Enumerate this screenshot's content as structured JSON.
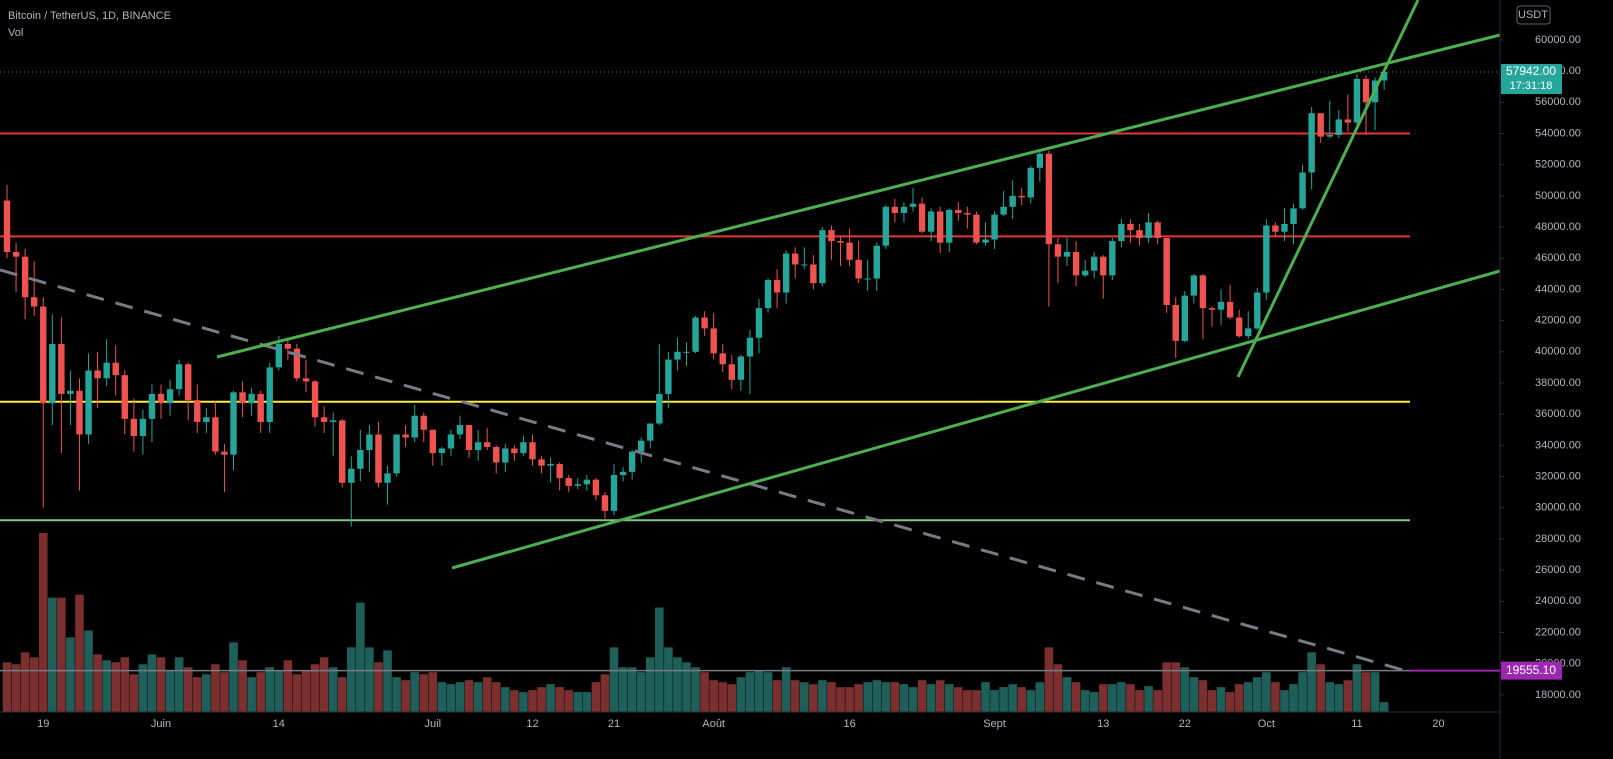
{
  "chart_data": {
    "type": "candlestick",
    "title": "Bitcoin / TetherUS, 1D, BINANCE",
    "volume_label": "Vol",
    "currency": "USDT",
    "categories": [
      null,
      null,
      null,
      null,
      "19",
      null,
      null,
      null,
      null,
      null,
      null,
      null,
      null,
      null,
      null,
      null,
      null,
      "Juin",
      null,
      null,
      null,
      null,
      null,
      null,
      null,
      null,
      null,
      null,
      null,
      null,
      "14",
      null,
      null,
      null,
      null,
      null,
      null,
      null,
      null,
      null,
      null,
      null,
      null,
      null,
      null,
      null,
      null,
      "Juil",
      null,
      null,
      null,
      null,
      null,
      null,
      null,
      null,
      null,
      null,
      "12",
      null,
      null,
      null,
      null,
      null,
      null,
      null,
      null,
      "21",
      null,
      null,
      null,
      null,
      null,
      null,
      null,
      null,
      null,
      null,
      "Août",
      null,
      null,
      null,
      null,
      null,
      null,
      null,
      null,
      null,
      null,
      null,
      null,
      null,
      null,
      "16",
      null,
      null,
      null,
      null,
      null,
      null,
      null,
      null,
      null,
      null,
      null,
      null,
      null,
      null,
      null,
      "Sept",
      null,
      null,
      null,
      null,
      null,
      null,
      null,
      null,
      null,
      null,
      null,
      "13",
      null,
      null,
      null,
      null,
      null,
      null,
      null,
      null,
      "22",
      null,
      null,
      null,
      null,
      null,
      null,
      null,
      null,
      "Oct",
      null,
      null,
      null,
      null,
      null,
      null,
      null,
      null,
      null,
      "11",
      null,
      null,
      null,
      null,
      null,
      null,
      null,
      null,
      "20"
    ],
    "open": [
      49700,
      46400,
      46100,
      43500,
      42900,
      36700,
      40500,
      37300,
      37500,
      34700,
      38800,
      38300,
      39300,
      38500,
      35700,
      34600,
      35700,
      37300,
      36700,
      37600,
      39200,
      36900,
      35500,
      35800,
      33600,
      33400,
      37400,
      36700,
      37300,
      35500,
      39000,
      40500,
      40200,
      38300,
      38100,
      35800,
      35500,
      35600,
      31600,
      32500,
      33700,
      34700,
      31600,
      32200,
      34700,
      34500,
      35900,
      35000,
      33500,
      33800,
      34700,
      35300,
      33700,
      34200,
      33900,
      32900,
      33800,
      33500,
      34200,
      33100,
      32700,
      32800,
      31900,
      31400,
      31500,
      31800,
      30800,
      29800,
      32100,
      32300,
      33600,
      34300,
      35400,
      37300,
      39500,
      40000,
      40000,
      42200,
      41500,
      39900,
      39200,
      38200,
      39700,
      40900,
      42800,
      44600,
      43800,
      46300,
      45600,
      45600,
      44400,
      47800,
      47100,
      47000,
      45900,
      44700,
      44700,
      46800,
      49300,
      48900,
      49300,
      49500,
      47700,
      49000,
      47000,
      49100,
      48900,
      48800,
      47000,
      47200,
      48800,
      49300,
      50000,
      49900,
      51800,
      52700,
      46900,
      46100,
      46400,
      44900,
      45200,
      46100,
      44900,
      47100,
      48200,
      47800,
      47300,
      48300,
      47300,
      43000,
      40700,
      43600,
      44900,
      42800,
      42700,
      43200,
      42200,
      41000,
      41500,
      43800,
      48100,
      47700,
      48200,
      49200,
      51500,
      55300,
      53800,
      53900,
      54900,
      54700,
      57500,
      56000,
      57400,
      null,
      null,
      null,
      null,
      null,
      null
    ],
    "high": [
      50700,
      47000,
      46600,
      45800,
      43500,
      42400,
      42200,
      38800,
      38300,
      39900,
      40000,
      40800,
      40400,
      38800,
      37000,
      36300,
      37900,
      37900,
      38200,
      39500,
      39300,
      37900,
      36400,
      36800,
      34100,
      37500,
      38100,
      37700,
      37500,
      39300,
      41000,
      40900,
      40500,
      39500,
      38200,
      36500,
      36100,
      35700,
      33300,
      35000,
      35300,
      35500,
      32700,
      34700,
      35300,
      36600,
      36100,
      35000,
      33900,
      35000,
      35900,
      35300,
      35000,
      35100,
      34000,
      34100,
      34000,
      34600,
      34700,
      33300,
      33200,
      32900,
      32100,
      31900,
      32100,
      31900,
      31000,
      32800,
      32600,
      33700,
      34500,
      35400,
      40500,
      40000,
      40900,
      40600,
      42300,
      42600,
      42500,
      40500,
      39800,
      39800,
      41400,
      43400,
      44700,
      45300,
      46500,
      46700,
      46700,
      46200,
      48000,
      48100,
      47400,
      47900,
      47100,
      45900,
      47000,
      49400,
      49800,
      49600,
      50500,
      49900,
      49200,
      49300,
      49200,
      49600,
      49300,
      49000,
      48300,
      49000,
      50300,
      51000,
      50500,
      51900,
      52900,
      52900,
      47300,
      47300,
      47100,
      45900,
      46400,
      46200,
      47300,
      48500,
      48500,
      48200,
      48900,
      48400,
      47300,
      43500,
      43900,
      45000,
      45000,
      42900,
      44000,
      44300,
      42700,
      42600,
      44100,
      48500,
      48300,
      49200,
      49500,
      52000,
      55700,
      55300,
      56100,
      55500,
      56500,
      57800,
      57700,
      57600,
      58000,
      null,
      null,
      null,
      null,
      null,
      null
    ],
    "low": [
      46000,
      43800,
      42100,
      42300,
      30000,
      35300,
      33500,
      35300,
      31100,
      34100,
      36400,
      37800,
      37200,
      34700,
      33600,
      33400,
      34200,
      35700,
      35900,
      37200,
      35600,
      34800,
      34800,
      33400,
      31000,
      32400,
      35800,
      35900,
      34800,
      34800,
      38800,
      39500,
      38100,
      37400,
      35200,
      34800,
      33300,
      31300,
      28800,
      31700,
      32300,
      31300,
      30200,
      32000,
      33900,
      34200,
      34200,
      32700,
      32700,
      33300,
      34400,
      33200,
      33000,
      33700,
      32200,
      32300,
      33000,
      33300,
      32700,
      32200,
      31600,
      31100,
      31000,
      31200,
      31100,
      30500,
      29300,
      29500,
      31700,
      31800,
      32900,
      33800,
      35300,
      36400,
      38800,
      39100,
      39900,
      41000,
      39500,
      38700,
      37600,
      37500,
      37300,
      39900,
      42500,
      42800,
      43100,
      44700,
      45300,
      44000,
      44200,
      45900,
      45500,
      45500,
      44400,
      43900,
      43900,
      46600,
      48300,
      48300,
      49000,
      47600,
      47100,
      46300,
      46400,
      48400,
      47900,
      46900,
      46800,
      46600,
      48700,
      48500,
      49400,
      49500,
      50900,
      42900,
      44400,
      45500,
      44200,
      44800,
      44700,
      43400,
      44600,
      46700,
      47000,
      46800,
      47000,
      46900,
      42500,
      39600,
      40600,
      43100,
      40800,
      41600,
      41700,
      42100,
      40900,
      40800,
      41400,
      43300,
      47400,
      47100,
      46900,
      49100,
      50400,
      53400,
      53700,
      53700,
      54100,
      54400,
      53900,
      54200,
      56800,
      null,
      null,
      null,
      null,
      null,
      null
    ],
    "close": [
      46400,
      46100,
      43500,
      42900,
      36700,
      40500,
      37300,
      37500,
      34700,
      38800,
      38300,
      39300,
      38500,
      35700,
      34600,
      35700,
      37300,
      36700,
      37600,
      39200,
      36900,
      35500,
      35800,
      33600,
      33400,
      37400,
      36700,
      37300,
      35500,
      39000,
      40500,
      40200,
      38300,
      38100,
      35800,
      35500,
      35600,
      31600,
      32500,
      33700,
      34700,
      31600,
      32200,
      34700,
      34500,
      35900,
      35000,
      33500,
      33800,
      34700,
      35300,
      33700,
      34200,
      33900,
      32900,
      33800,
      33500,
      34200,
      33100,
      32700,
      32800,
      31900,
      31400,
      31500,
      31800,
      30800,
      29800,
      32100,
      32300,
      33600,
      34300,
      35400,
      37300,
      39500,
      40000,
      40000,
      42200,
      41500,
      39900,
      39200,
      38200,
      39700,
      40900,
      42800,
      44600,
      43800,
      46300,
      45600,
      45600,
      44400,
      47800,
      47100,
      47000,
      45900,
      44700,
      44700,
      46800,
      49300,
      48900,
      49300,
      49500,
      47700,
      49000,
      47000,
      49100,
      48900,
      48800,
      47000,
      47200,
      48800,
      49300,
      50000,
      49900,
      51800,
      52700,
      46900,
      46100,
      46400,
      44900,
      45200,
      46100,
      44900,
      47100,
      48200,
      47800,
      47300,
      48300,
      47300,
      43000,
      40700,
      43600,
      44900,
      42800,
      42700,
      43200,
      42200,
      41000,
      41500,
      43800,
      48100,
      47700,
      48200,
      49200,
      51500,
      55300,
      53800,
      53900,
      54900,
      54700,
      57500,
      56000,
      57400,
      57942,
      null,
      null,
      null,
      null,
      null,
      null
    ],
    "volume": [
      50,
      48,
      60,
      55,
      180,
      115,
      115,
      75,
      118,
      82,
      58,
      52,
      50,
      55,
      38,
      48,
      58,
      55,
      42,
      55,
      45,
      35,
      38,
      48,
      40,
      70,
      52,
      35,
      40,
      45,
      42,
      52,
      38,
      42,
      48,
      55,
      45,
      35,
      65,
      110,
      65,
      50,
      62,
      35,
      32,
      40,
      38,
      40,
      30,
      28,
      30,
      32,
      30,
      35,
      30,
      25,
      22,
      20,
      22,
      25,
      28,
      25,
      22,
      20,
      20,
      30,
      38,
      65,
      45,
      45,
      40,
      55,
      105,
      65,
      55,
      50,
      45,
      40,
      32,
      30,
      28,
      35,
      40,
      42,
      40,
      32,
      45,
      32,
      30,
      28,
      32,
      30,
      25,
      25,
      28,
      30,
      32,
      30,
      30,
      28,
      25,
      32,
      28,
      32,
      28,
      25,
      22,
      22,
      30,
      22,
      25,
      28,
      25,
      22,
      30,
      65,
      48,
      35,
      30,
      22,
      20,
      28,
      28,
      30,
      28,
      22,
      26,
      22,
      50,
      50,
      45,
      35,
      32,
      22,
      25,
      20,
      28,
      30,
      35,
      40,
      30,
      22,
      28,
      40,
      60,
      48,
      30,
      28,
      32,
      48,
      40,
      40,
      10,
      null,
      null,
      null,
      null,
      null,
      null
    ],
    "up_color": "#26a69a",
    "down_color": "#ef5350",
    "volume_up_color": "#1f5f5a",
    "volume_down_color": "#7b2f2f",
    "ylim": [
      16900,
      62560
    ],
    "yticks": [
      {
        "value": 18000,
        "label": "18000.00"
      },
      {
        "value": 20000,
        "label": "20000.00"
      },
      {
        "value": 22000,
        "label": "22000.00"
      },
      {
        "value": 24000,
        "label": "24000.00"
      },
      {
        "value": 26000,
        "label": "26000.00"
      },
      {
        "value": 28000,
        "label": "28000.00"
      },
      {
        "value": 30000,
        "label": "30000.00"
      },
      {
        "value": 32000,
        "label": "32000.00"
      },
      {
        "value": 34000,
        "label": "34000.00"
      },
      {
        "value": 36000,
        "label": "36000.00"
      },
      {
        "value": 38000,
        "label": "38000.00"
      },
      {
        "value": 40000,
        "label": "40000.00"
      },
      {
        "value": 42000,
        "label": "42000.00"
      },
      {
        "value": 44000,
        "label": "44000.00"
      },
      {
        "value": 46000,
        "label": "46000.00"
      },
      {
        "value": 48000,
        "label": "48000.00"
      },
      {
        "value": 50000,
        "label": "50000.00"
      },
      {
        "value": 52000,
        "label": "52000.00"
      },
      {
        "value": 54000,
        "label": "54000.00"
      },
      {
        "value": 56000,
        "label": "56000.00"
      },
      {
        "value": 58000,
        "label": "58000.00"
      },
      {
        "value": 60000,
        "label": "60000.00"
      }
    ],
    "grid": false,
    "levels": [
      {
        "value": 54000,
        "color": "#e53935"
      },
      {
        "value": 47400,
        "color": "#e53935"
      },
      {
        "value": 36800,
        "color": "#ffeb3b"
      },
      {
        "value": 29200,
        "color": "#81c784"
      }
    ],
    "last_price": {
      "value": 57942,
      "label": "57942.00",
      "countdown": "17:31:18",
      "color": "#26a69a"
    },
    "indicator": {
      "value": 19555.1,
      "label": "19555.10",
      "color": "#9c27b0"
    }
  }
}
